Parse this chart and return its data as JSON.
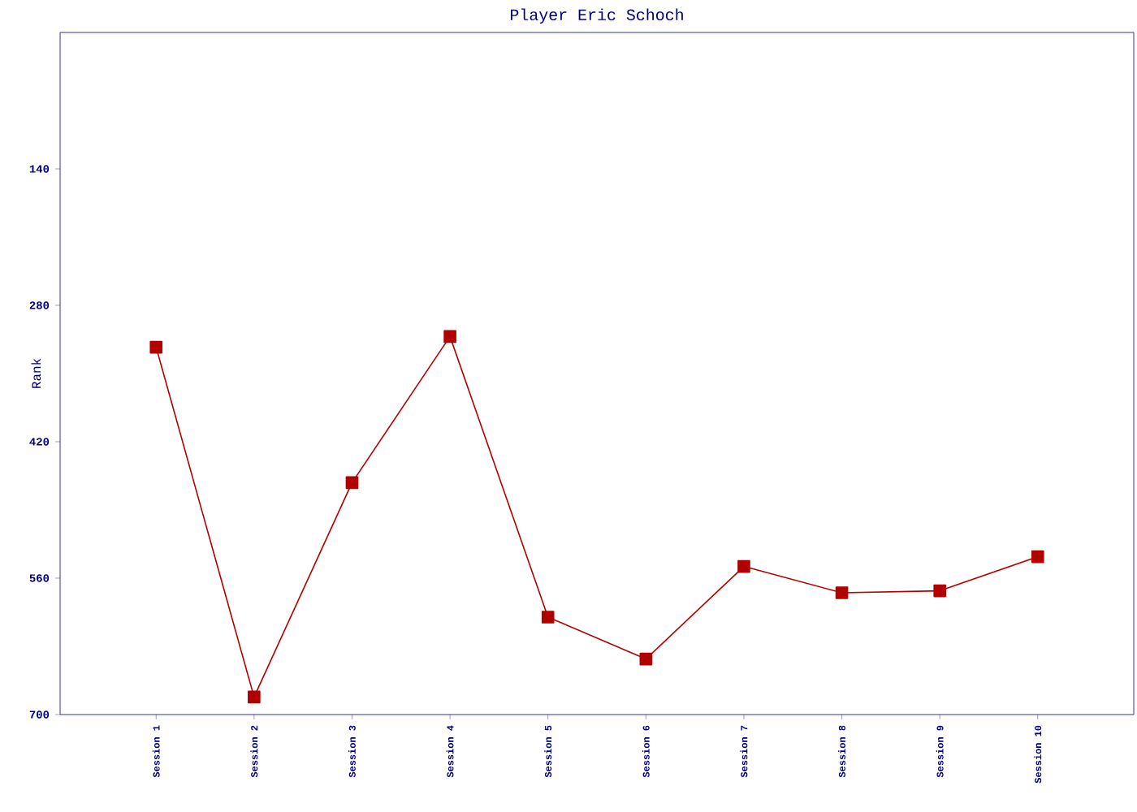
{
  "chart_data": {
    "type": "line",
    "title": "Player Eric Schoch",
    "ylabel": "Rank",
    "categories": [
      "Session 1",
      "Session 2",
      "Session 3",
      "Session 4",
      "Session 5",
      "Session 6",
      "Session 7",
      "Session 8",
      "Session 9",
      "Session 10"
    ],
    "series": [
      {
        "color": "#b00000",
        "values": [
          323,
          682,
          462,
          312,
          600,
          643,
          548,
          575,
          573,
          538
        ]
      }
    ],
    "ylim": [
      700,
      0
    ],
    "yticks": [
      140,
      280,
      420,
      560,
      700
    ],
    "marker": "square",
    "line_style": "solid"
  }
}
